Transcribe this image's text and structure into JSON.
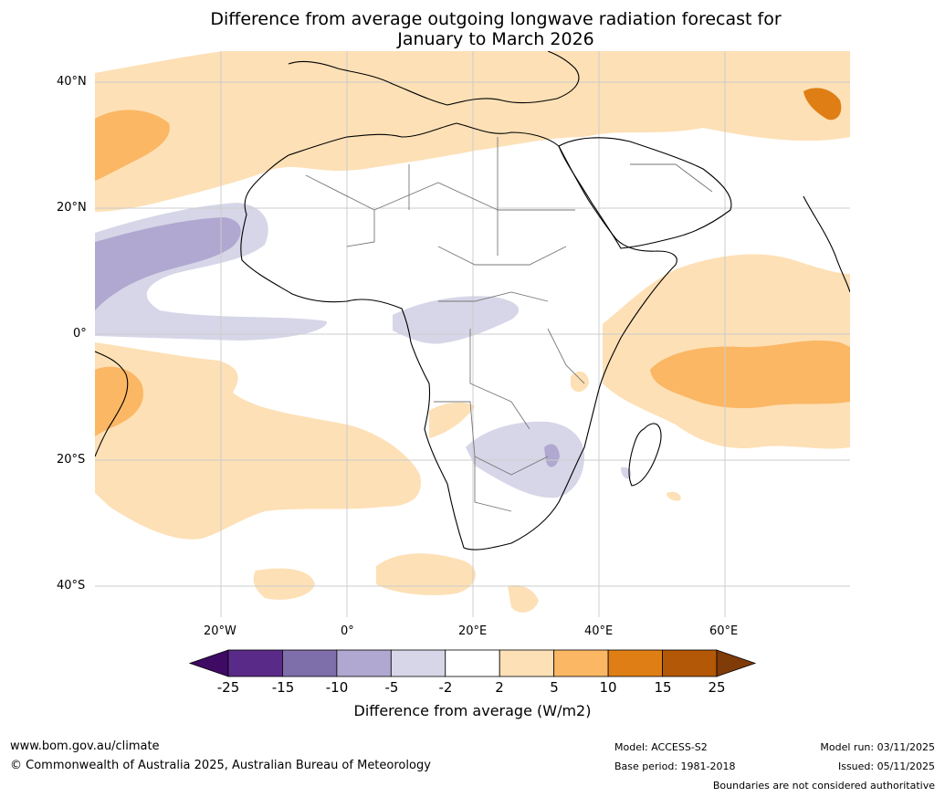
{
  "header": {
    "title_line1": "Difference from average outgoing longwave radiation forecast for",
    "title_line2": "January to March 2026"
  },
  "axes": {
    "lat_labels": [
      "40°N",
      "20°N",
      "0°",
      "20°S",
      "40°S"
    ],
    "lon_labels": [
      "20°W",
      "0°",
      "20°E",
      "40°E",
      "60°E"
    ]
  },
  "legend": {
    "title": "Difference from average (W/m2)",
    "ticks": [
      "-25",
      "-15",
      "-10",
      "-5",
      "-2",
      "2",
      "5",
      "10",
      "15",
      "25"
    ],
    "colors": [
      "#3f0a63",
      "#5a2a88",
      "#7e6ea9",
      "#b0a8d0",
      "#d6d6e8",
      "#ffffff",
      "#fde0b6",
      "#fbb764",
      "#de7e14",
      "#b35806",
      "#7f3b08"
    ]
  },
  "footer": {
    "website": "www.bom.gov.au/climate",
    "copyright": "© Commonwealth of Australia 2025, Australian Bureau of Meteorology",
    "model": "Model: ACCESS-S2",
    "base_period": "Base period: 1981-2018",
    "model_run": "Model run: 03/11/2025",
    "issued": "Issued: 05/11/2025",
    "disclaimer": "Boundaries are not considered authoritative"
  }
}
